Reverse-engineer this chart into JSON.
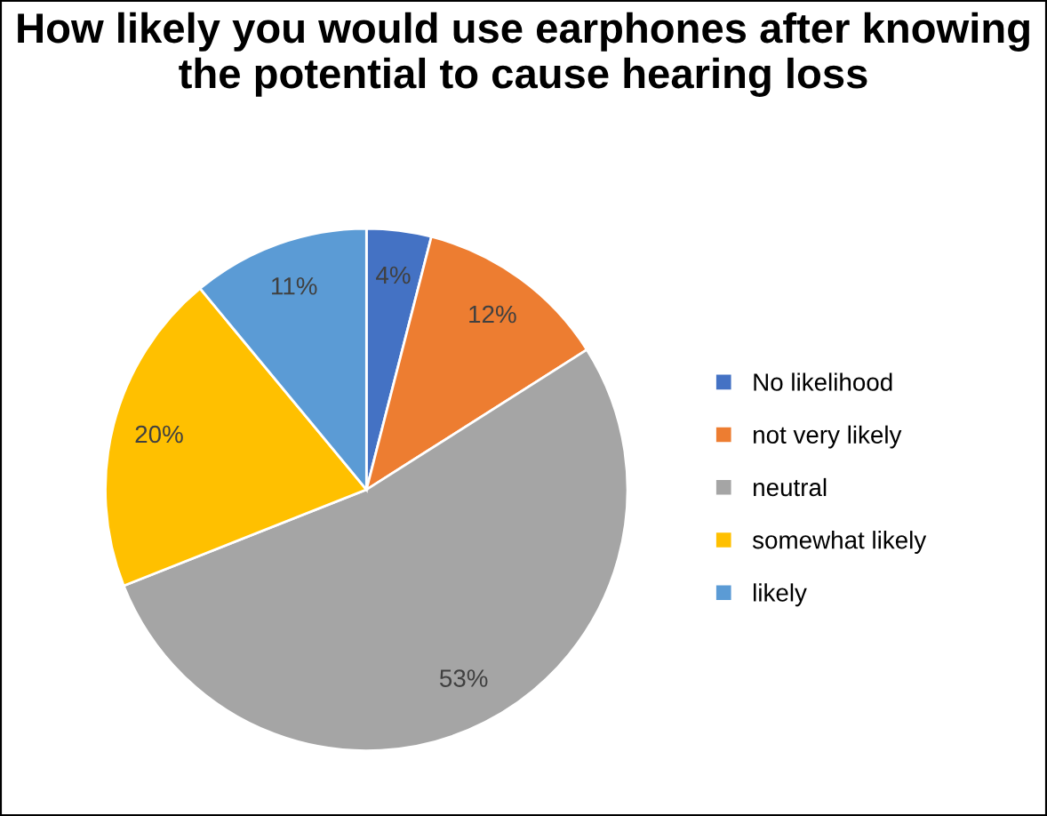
{
  "chart_data": {
    "type": "pie",
    "title": "How likely you would use earphones after knowing the potential to cause hearing loss",
    "categories": [
      "No likelihood",
      "not very likely",
      "neutral",
      "somewhat likely",
      "likely"
    ],
    "values": [
      4,
      12,
      53,
      20,
      11
    ],
    "colors": [
      "#4472c4",
      "#ed7d31",
      "#a5a5a5",
      "#ffc000",
      "#5b9bd5"
    ],
    "value_labels": [
      "4%",
      "12%",
      "53%",
      "20%",
      "11%"
    ],
    "legend": "right"
  }
}
